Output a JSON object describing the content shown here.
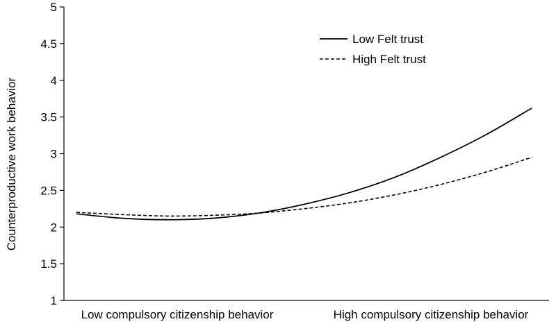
{
  "chart_data": {
    "type": "line",
    "title": "",
    "xlabel": "",
    "ylabel": "Counterproductive  work behavior",
    "x_categories": [
      "Low compulsory citizenship behavior",
      "High compulsory citizenship behavior"
    ],
    "x_range": [
      0,
      1
    ],
    "ylim": [
      1,
      5
    ],
    "yticks": [
      "1",
      "1.5",
      "2",
      "2.5",
      "3",
      "3.5",
      "4",
      "4.5",
      "5"
    ],
    "grid": false,
    "legend_position": "top-right",
    "series": [
      {
        "name": "Low Felt trust",
        "style": "solid",
        "color": "#000000",
        "x": [
          0.0,
          0.1,
          0.2,
          0.3,
          0.4,
          0.5,
          0.6,
          0.7,
          0.8,
          0.9,
          1.0
        ],
        "y": [
          2.18,
          2.12,
          2.1,
          2.12,
          2.19,
          2.31,
          2.47,
          2.68,
          2.95,
          3.26,
          3.62
        ]
      },
      {
        "name": "High Felt trust",
        "style": "dashed",
        "color": "#000000",
        "x": [
          0.0,
          0.1,
          0.2,
          0.3,
          0.4,
          0.5,
          0.6,
          0.7,
          0.8,
          0.9,
          1.0
        ],
        "y": [
          2.2,
          2.17,
          2.15,
          2.16,
          2.19,
          2.25,
          2.33,
          2.44,
          2.58,
          2.75,
          2.95
        ]
      }
    ]
  }
}
